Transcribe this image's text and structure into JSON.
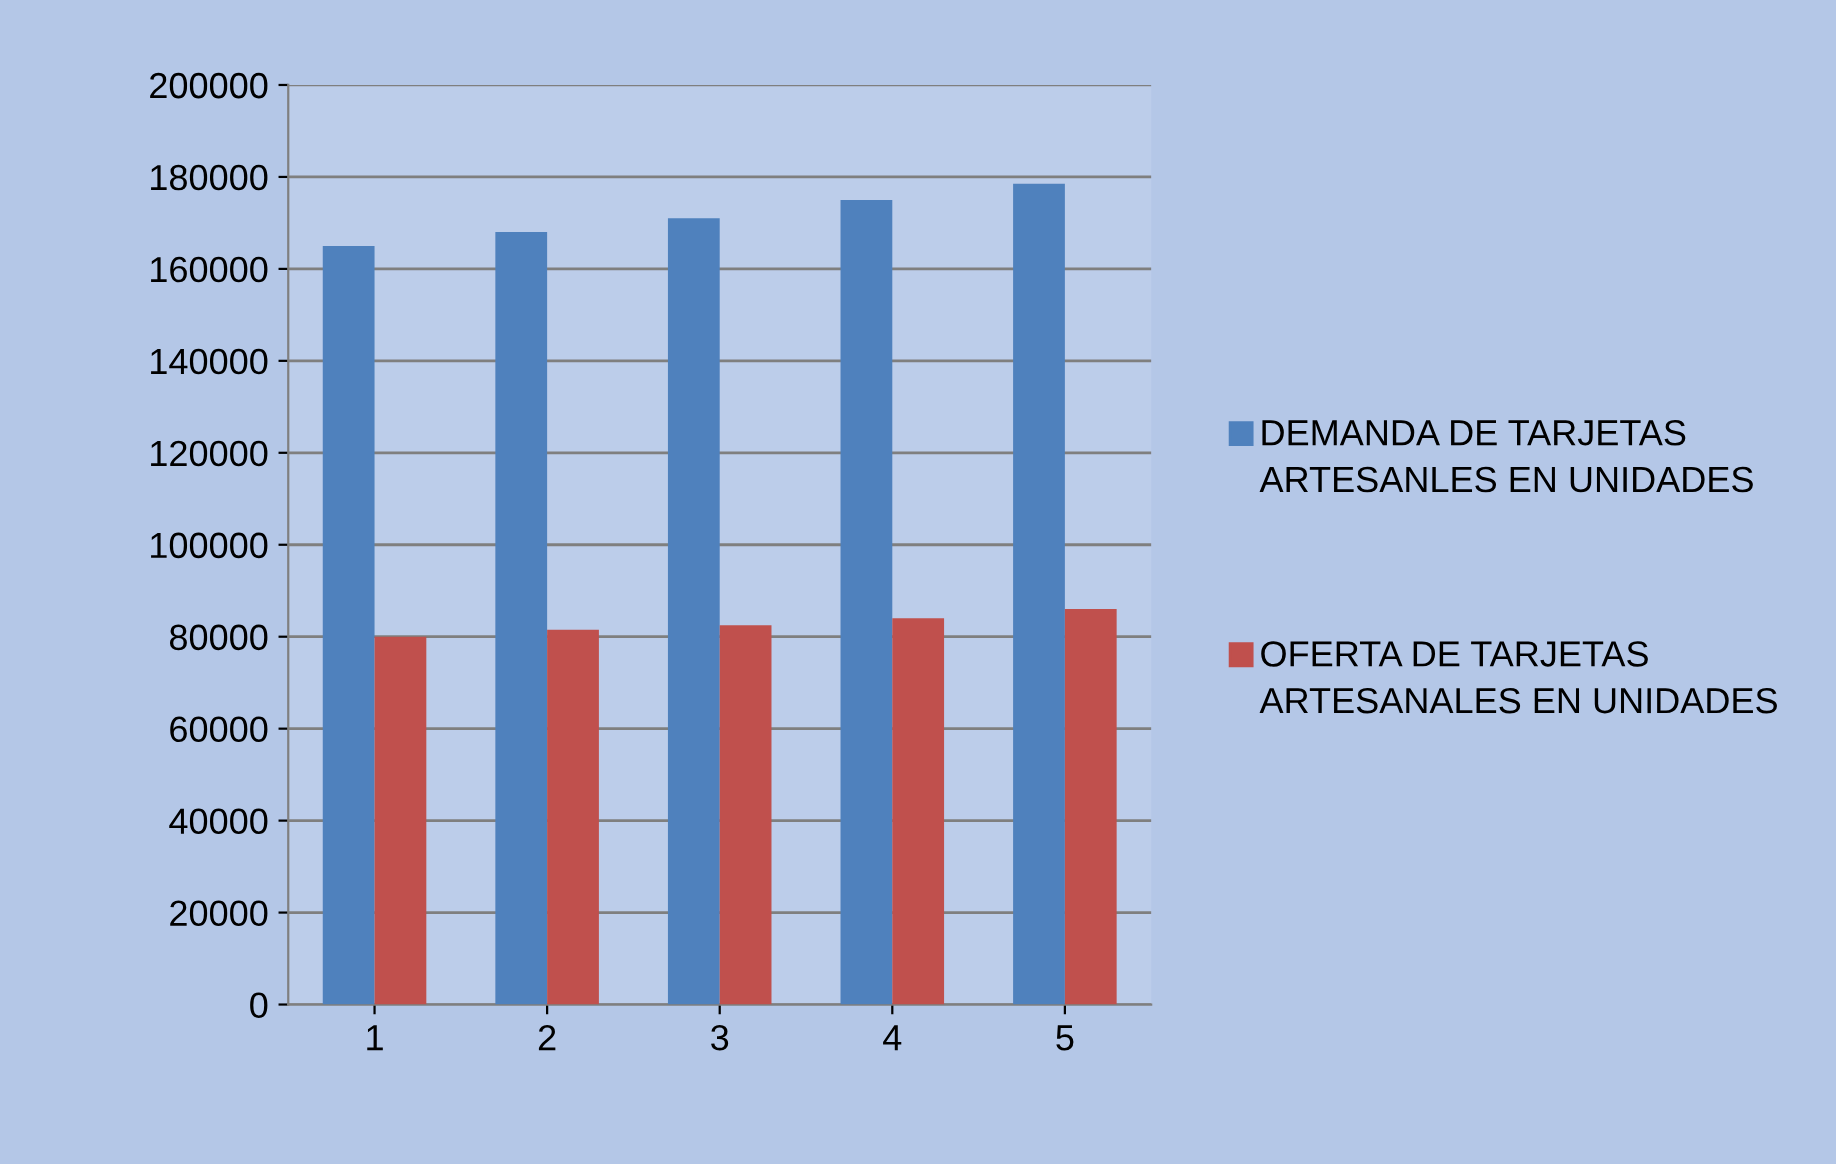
{
  "chart_data": {
    "type": "bar",
    "categories": [
      "1",
      "2",
      "3",
      "4",
      "5"
    ],
    "series": [
      {
        "name": "DEMANDA DE TARJETAS ARTESANLES EN UNIDADES",
        "color": "#4f81bd",
        "values": [
          165000,
          168000,
          171000,
          175000,
          178500
        ]
      },
      {
        "name": "OFERTA DE TARJETAS ARTESANALES EN UNIDADES",
        "color": "#c0504d",
        "values": [
          80000,
          81500,
          82500,
          84000,
          86000
        ]
      }
    ],
    "ylim": [
      0,
      200000
    ],
    "yticks": [
      0,
      20000,
      40000,
      60000,
      80000,
      100000,
      120000,
      140000,
      160000,
      180000,
      200000
    ],
    "grid": "y",
    "legend": "right"
  }
}
